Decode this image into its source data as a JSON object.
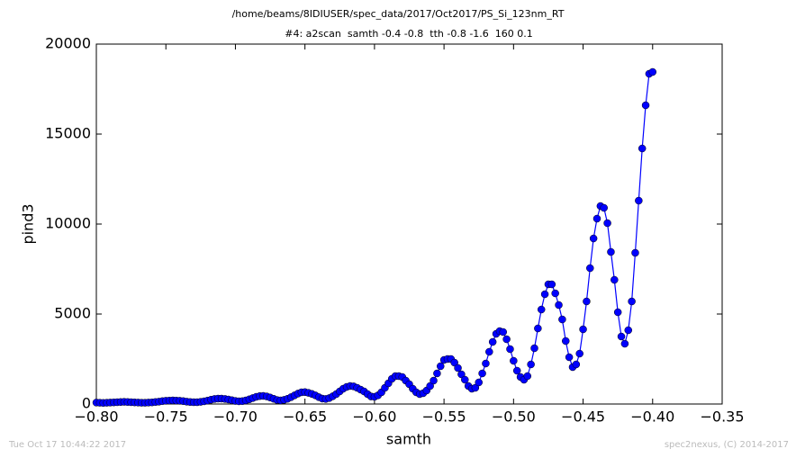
{
  "chart_data": {
    "type": "line",
    "title": "/home/beams/8IDIUSER/spec_data/2017/Oct2017/PS_Si_123nm_RT",
    "subtitle": "#4: a2scan  samth -0.4 -0.8  tth -0.8 -1.6  160 0.1",
    "x_label": "samth",
    "y_label": "pind3",
    "footer_left": "Tue Oct 17 10:44:22 2017",
    "footer_right": "spec2nexus, (C) 2014-2017",
    "x": [
      -0.8,
      -0.7975,
      -0.795,
      -0.7925,
      -0.79,
      -0.7875,
      -0.785,
      -0.7825,
      -0.78,
      -0.7775,
      -0.775,
      -0.7725,
      -0.77,
      -0.7675,
      -0.765,
      -0.7625,
      -0.76,
      -0.7575,
      -0.755,
      -0.7525,
      -0.75,
      -0.7475,
      -0.745,
      -0.7425,
      -0.74,
      -0.7375,
      -0.735,
      -0.7325,
      -0.73,
      -0.7275,
      -0.725,
      -0.7225,
      -0.72,
      -0.7175,
      -0.715,
      -0.7125,
      -0.71,
      -0.7075,
      -0.705,
      -0.7025,
      -0.7,
      -0.6975,
      -0.695,
      -0.6925,
      -0.69,
      -0.6875,
      -0.685,
      -0.6825,
      -0.68,
      -0.6775,
      -0.675,
      -0.6725,
      -0.67,
      -0.6675,
      -0.665,
      -0.6625,
      -0.66,
      -0.6575,
      -0.655,
      -0.6525,
      -0.65,
      -0.6475,
      -0.645,
      -0.6425,
      -0.64,
      -0.6375,
      -0.635,
      -0.6325,
      -0.63,
      -0.6275,
      -0.625,
      -0.6225,
      -0.62,
      -0.6175,
      -0.615,
      -0.6125,
      -0.61,
      -0.6075,
      -0.605,
      -0.6025,
      -0.6,
      -0.5975,
      -0.595,
      -0.5925,
      -0.59,
      -0.5875,
      -0.585,
      -0.5825,
      -0.58,
      -0.5775,
      -0.575,
      -0.5725,
      -0.57,
      -0.5675,
      -0.565,
      -0.5625,
      -0.56,
      -0.5575,
      -0.555,
      -0.5525,
      -0.55,
      -0.5475,
      -0.545,
      -0.5425,
      -0.54,
      -0.5375,
      -0.535,
      -0.5325,
      -0.53,
      -0.5275,
      -0.525,
      -0.5225,
      -0.52,
      -0.5175,
      -0.515,
      -0.5125,
      -0.51,
      -0.5075,
      -0.505,
      -0.5025,
      -0.5,
      -0.4975,
      -0.495,
      -0.4925,
      -0.49,
      -0.4875,
      -0.485,
      -0.4825,
      -0.48,
      -0.4775,
      -0.475,
      -0.4725,
      -0.47,
      -0.4675,
      -0.465,
      -0.4625,
      -0.46,
      -0.4575,
      -0.455,
      -0.4525,
      -0.45,
      -0.4475,
      -0.445,
      -0.4425,
      -0.44,
      -0.4375,
      -0.435,
      -0.4325,
      -0.43,
      -0.4275,
      -0.425,
      -0.4225,
      -0.42,
      -0.4175,
      -0.415,
      -0.4125,
      -0.41,
      -0.4075,
      -0.405,
      -0.4025,
      -0.4
    ],
    "series": [
      {
        "color": "#0000ff",
        "values": [
          80,
          70,
          60,
          70,
          80,
          90,
          100,
          110,
          120,
          110,
          100,
          90,
          80,
          70,
          70,
          80,
          90,
          110,
          130,
          160,
          180,
          190,
          200,
          190,
          180,
          160,
          130,
          110,
          100,
          100,
          120,
          150,
          190,
          240,
          280,
          300,
          300,
          280,
          250,
          210,
          170,
          150,
          160,
          200,
          260,
          330,
          400,
          440,
          450,
          420,
          360,
          290,
          220,
          200,
          230,
          290,
          380,
          480,
          580,
          650,
          660,
          620,
          560,
          480,
          380,
          300,
          280,
          330,
          430,
          550,
          700,
          850,
          950,
          1000,
          980,
          900,
          800,
          700,
          550,
          420,
          400,
          480,
          650,
          900,
          1150,
          1400,
          1550,
          1550,
          1500,
          1300,
          1100,
          850,
          650,
          550,
          600,
          750,
          1000,
          1300,
          1700,
          2100,
          2450,
          2500,
          2500,
          2300,
          2000,
          1650,
          1350,
          1000,
          850,
          900,
          1200,
          1700,
          2250,
          2900,
          3450,
          3900,
          4050,
          4000,
          3600,
          3050,
          2400,
          1850,
          1500,
          1350,
          1550,
          2200,
          3100,
          4200,
          5250,
          6100,
          6650,
          6650,
          6150,
          5500,
          4700,
          3500,
          2600,
          2050,
          2200,
          2800,
          4150,
          5700,
          7550,
          9200,
          10300,
          11000,
          10900,
          10050,
          8450,
          6900,
          5100,
          3750,
          3350,
          4100,
          5700,
          8400,
          11300,
          14200,
          16600,
          18350,
          18450
        ]
      }
    ],
    "xlim": [
      -0.8,
      -0.35
    ],
    "xticks": [
      {
        "value": -0.8,
        "label": "−0.80"
      },
      {
        "value": -0.75,
        "label": "−0.75"
      },
      {
        "value": -0.7,
        "label": "−0.70"
      },
      {
        "value": -0.65,
        "label": "−0.65"
      },
      {
        "value": -0.6,
        "label": "−0.60"
      },
      {
        "value": -0.55,
        "label": "−0.55"
      },
      {
        "value": -0.5,
        "label": "−0.50"
      },
      {
        "value": -0.45,
        "label": "−0.45"
      },
      {
        "value": -0.4,
        "label": "−0.40"
      },
      {
        "value": -0.35,
        "label": "−0.35"
      }
    ],
    "ylim": [
      0,
      20000
    ],
    "yticks": [
      0,
      5000,
      10000,
      15000,
      20000
    ]
  }
}
